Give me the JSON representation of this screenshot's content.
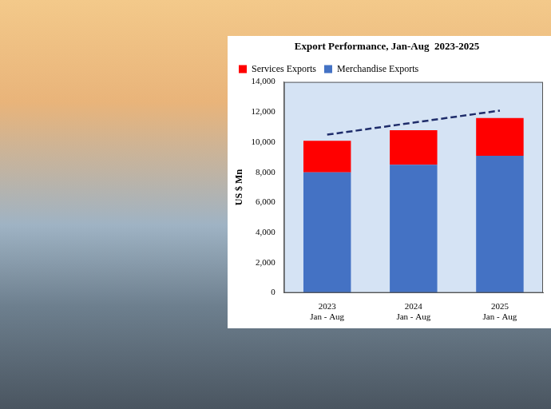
{
  "chart_data": {
    "type": "bar",
    "title": "Export Performance, Jan-Aug  2023-2025",
    "y_label": "US $ Mn",
    "categories": [
      "2023\nJan - Aug",
      "2024\nJan - Aug",
      "2025\nJan - Aug"
    ],
    "series": [
      {
        "name": "Merchandise Exports",
        "color": "#4472c4",
        "values": [
          8000,
          8500,
          9100
        ]
      },
      {
        "name": "Services Exports",
        "color": "#ff0000",
        "values": [
          2100,
          2300,
          2500
        ]
      },
      {
        "type": "line",
        "line_style": "dashed",
        "color": "#1f2d6b",
        "values": [
          10500,
          11300,
          12100
        ]
      }
    ],
    "stacked": true,
    "ylim": [
      0,
      14000
    ],
    "yticks": [
      0,
      {
        "value": 2000,
        "label": "2,000"
      },
      {
        "value": 4000,
        "label": "4,000"
      },
      {
        "value": 6000,
        "label": "6,000"
      },
      {
        "value": 8000,
        "label": "8,000"
      },
      {
        "value": 10000,
        "label": "10,000"
      },
      {
        "value": 12000,
        "label": "12,000"
      },
      {
        "value": 14000,
        "label": "14,000"
      }
    ],
    "grid": false,
    "legend": "top-left"
  }
}
